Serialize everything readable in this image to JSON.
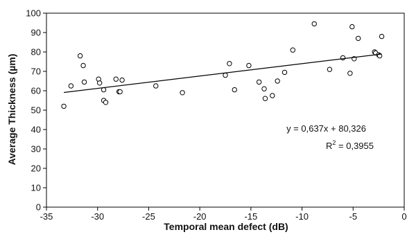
{
  "chart_data": {
    "type": "scatter",
    "xlabel": "Temporal mean defect (dB)",
    "ylabel": "Average Thickness (µm)",
    "xlim": [
      -35,
      0
    ],
    "ylim": [
      0,
      100
    ],
    "x_ticks": [
      -35,
      -30,
      -25,
      -20,
      -15,
      -10,
      -5,
      0
    ],
    "y_ticks": [
      0,
      10,
      20,
      30,
      40,
      50,
      60,
      70,
      80,
      90,
      100
    ],
    "grid": false,
    "legend": "none",
    "points": [
      {
        "x": -33.3,
        "y": 52
      },
      {
        "x": -32.6,
        "y": 62.5
      },
      {
        "x": -31.7,
        "y": 78
      },
      {
        "x": -31.4,
        "y": 73
      },
      {
        "x": -31.3,
        "y": 64.5
      },
      {
        "x": -29.9,
        "y": 66
      },
      {
        "x": -29.8,
        "y": 64
      },
      {
        "x": -29.4,
        "y": 60.5
      },
      {
        "x": -29.4,
        "y": 55
      },
      {
        "x": -29.2,
        "y": 54
      },
      {
        "x": -28.2,
        "y": 66
      },
      {
        "x": -27.9,
        "y": 59.5
      },
      {
        "x": -27.8,
        "y": 59.5
      },
      {
        "x": -27.6,
        "y": 65.5
      },
      {
        "x": -24.3,
        "y": 62.5
      },
      {
        "x": -21.7,
        "y": 59
      },
      {
        "x": -17.5,
        "y": 68
      },
      {
        "x": -17.1,
        "y": 74
      },
      {
        "x": -16.6,
        "y": 60.5
      },
      {
        "x": -15.2,
        "y": 73
      },
      {
        "x": -14.2,
        "y": 64.5
      },
      {
        "x": -13.7,
        "y": 61
      },
      {
        "x": -13.6,
        "y": 56
      },
      {
        "x": -12.9,
        "y": 57.5
      },
      {
        "x": -12.4,
        "y": 65
      },
      {
        "x": -11.7,
        "y": 69.5
      },
      {
        "x": -10.9,
        "y": 81
      },
      {
        "x": -8.8,
        "y": 94.5
      },
      {
        "x": -7.3,
        "y": 71
      },
      {
        "x": -6.0,
        "y": 77
      },
      {
        "x": -5.3,
        "y": 69
      },
      {
        "x": -5.1,
        "y": 93
      },
      {
        "x": -4.9,
        "y": 76.5
      },
      {
        "x": -4.5,
        "y": 87
      },
      {
        "x": -2.9,
        "y": 80
      },
      {
        "x": -2.8,
        "y": 79.5
      },
      {
        "x": -2.5,
        "y": 78.5
      },
      {
        "x": -2.4,
        "y": 78
      },
      {
        "x": -2.2,
        "y": 88
      }
    ],
    "trendline": {
      "slope": 0.637,
      "intercept": 80.326,
      "x_range": [
        -33.3,
        -2.2
      ]
    },
    "annotations": {
      "equation": "y = 0,637x + 80,326",
      "r2_prefix": "R",
      "r2_sup": "2",
      "r2_suffix": " = 0,3955"
    }
  }
}
